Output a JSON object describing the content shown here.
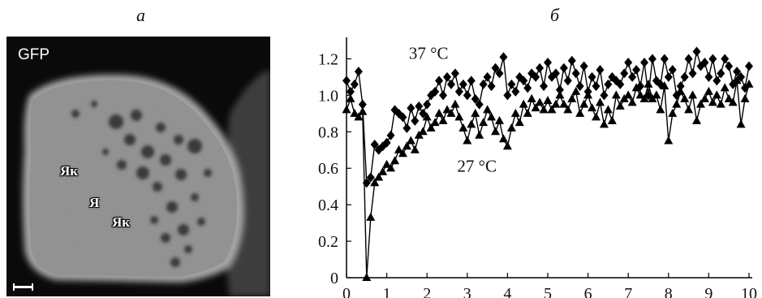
{
  "panels": {
    "left_label": "а",
    "right_label": "б"
  },
  "micrograph": {
    "channel_label": "GFP",
    "nucleolus_label_1": "Як",
    "nucleus_label": "Я",
    "nucleolus_label_2": "Як"
  },
  "chart_data": {
    "type": "line",
    "title": "",
    "xlabel": "",
    "ylabel": "",
    "xlim": [
      0,
      10
    ],
    "ylim": [
      0,
      1.3
    ],
    "x_ticks": [
      "0",
      "1",
      "2",
      "3",
      "4",
      "5",
      "6",
      "7",
      "8",
      "9",
      "10"
    ],
    "y_ticks": [
      "0",
      "0.2",
      "0.4",
      "0.6",
      "0.8",
      "1.0",
      "1.2"
    ],
    "annotations": [
      "37 °C",
      "27 °C"
    ],
    "series": [
      {
        "marker": "diamond",
        "x": [
          0.0,
          0.1,
          0.2,
          0.3,
          0.4,
          0.5,
          0.6,
          0.7,
          0.8,
          0.9,
          1.0,
          1.1,
          1.2,
          1.3,
          1.4,
          1.5,
          1.6,
          1.7,
          1.8,
          1.9,
          2.0,
          2.1,
          2.2,
          2.3,
          2.4,
          2.5,
          2.6,
          2.7,
          2.8,
          2.9,
          3.0,
          3.1,
          3.2,
          3.3,
          3.4,
          3.5,
          3.6,
          3.7,
          3.8,
          3.9,
          4.0,
          4.1,
          4.2,
          4.3,
          4.4,
          4.5,
          4.6,
          4.7,
          4.8,
          4.9,
          5.0,
          5.1,
          5.2,
          5.3,
          5.4,
          5.5,
          5.6,
          5.7,
          5.8,
          5.9,
          6.0,
          6.1,
          6.2,
          6.3,
          6.4,
          6.5,
          6.6,
          6.7,
          6.8,
          6.9,
          7.0,
          7.1,
          7.2,
          7.3,
          7.4,
          7.5,
          7.6,
          7.7,
          7.8,
          7.9,
          8.0,
          8.1,
          8.2,
          8.3,
          8.4,
          8.5,
          8.6,
          8.7,
          8.8,
          8.9,
          9.0,
          9.1,
          9.2,
          9.3,
          9.4,
          9.5,
          9.6,
          9.7,
          9.8,
          9.9,
          10.0
        ],
        "values": [
          1.08,
          1.02,
          1.06,
          1.13,
          0.95,
          0.52,
          0.55,
          0.73,
          0.7,
          0.72,
          0.74,
          0.78,
          0.92,
          0.9,
          0.88,
          0.82,
          0.93,
          0.86,
          0.94,
          0.9,
          0.95,
          1.0,
          1.02,
          1.08,
          1.0,
          1.1,
          1.06,
          1.12,
          1.02,
          1.06,
          1.0,
          1.08,
          0.98,
          0.95,
          1.06,
          1.1,
          1.05,
          1.15,
          1.12,
          1.21,
          1.0,
          1.06,
          1.02,
          1.1,
          1.08,
          1.04,
          1.12,
          1.1,
          1.15,
          1.05,
          1.18,
          1.1,
          1.12,
          1.03,
          1.15,
          1.08,
          1.19,
          1.12,
          1.05,
          1.16,
          1.02,
          1.1,
          1.05,
          1.14,
          1.0,
          1.06,
          1.1,
          1.08,
          1.06,
          1.12,
          1.18,
          1.1,
          1.14,
          1.05,
          1.18,
          1.0,
          1.2,
          1.08,
          1.06,
          1.2,
          1.1,
          1.14,
          1.0,
          1.05,
          1.1,
          1.2,
          1.12,
          1.24,
          1.16,
          1.18,
          1.1,
          1.2,
          1.08,
          1.12,
          1.2,
          1.16,
          1.06,
          1.13,
          1.1,
          1.04,
          1.16
        ]
      },
      {
        "marker": "triangle",
        "x": [
          0.0,
          0.1,
          0.2,
          0.3,
          0.4,
          0.5,
          0.6,
          0.7,
          0.8,
          0.9,
          1.0,
          1.1,
          1.2,
          1.3,
          1.4,
          1.5,
          1.6,
          1.7,
          1.8,
          1.9,
          2.0,
          2.1,
          2.2,
          2.3,
          2.4,
          2.5,
          2.6,
          2.7,
          2.8,
          2.9,
          3.0,
          3.1,
          3.2,
          3.3,
          3.4,
          3.5,
          3.6,
          3.7,
          3.8,
          3.9,
          4.0,
          4.1,
          4.2,
          4.3,
          4.4,
          4.5,
          4.6,
          4.7,
          4.8,
          4.9,
          5.0,
          5.1,
          5.2,
          5.3,
          5.4,
          5.5,
          5.6,
          5.7,
          5.8,
          5.9,
          6.0,
          6.1,
          6.2,
          6.3,
          6.4,
          6.5,
          6.6,
          6.7,
          6.8,
          6.9,
          7.0,
          7.1,
          7.2,
          7.3,
          7.4,
          7.5,
          7.6,
          7.7,
          7.8,
          7.9,
          8.0,
          8.1,
          8.2,
          8.3,
          8.4,
          8.5,
          8.6,
          8.7,
          8.8,
          8.9,
          9.0,
          9.1,
          9.2,
          9.3,
          9.4,
          9.5,
          9.6,
          9.7,
          9.8,
          9.9,
          10.0
        ],
        "values": [
          0.92,
          0.98,
          0.9,
          0.88,
          0.91,
          0.0,
          0.33,
          0.52,
          0.55,
          0.58,
          0.62,
          0.6,
          0.64,
          0.7,
          0.68,
          0.72,
          0.75,
          0.7,
          0.78,
          0.8,
          0.88,
          0.82,
          0.85,
          0.9,
          0.86,
          0.92,
          0.9,
          0.95,
          0.88,
          0.82,
          0.75,
          0.84,
          0.9,
          0.78,
          0.85,
          0.92,
          0.88,
          0.8,
          0.86,
          0.76,
          0.72,
          0.82,
          0.9,
          0.85,
          0.95,
          0.9,
          0.98,
          0.93,
          0.96,
          0.92,
          0.97,
          0.92,
          0.95,
          1.0,
          0.95,
          0.92,
          0.98,
          1.02,
          0.9,
          0.95,
          1.0,
          0.93,
          0.88,
          0.96,
          0.84,
          0.92,
          0.86,
          1.0,
          0.94,
          0.98,
          1.0,
          0.96,
          1.04,
          1.0,
          0.98,
          1.06,
          0.98,
          1.0,
          0.92,
          1.05,
          0.75,
          0.9,
          0.95,
          1.02,
          0.98,
          0.92,
          1.0,
          0.86,
          0.95,
          0.98,
          1.02,
          0.96,
          1.0,
          0.95,
          1.04,
          0.98,
          0.96,
          1.08,
          0.84,
          0.98,
          1.06
        ]
      }
    ]
  }
}
